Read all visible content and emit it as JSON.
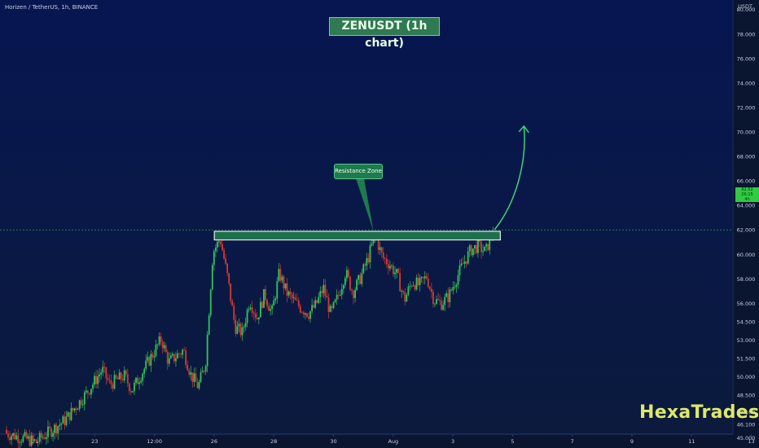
{
  "header": {
    "symbol_info": "Horizen / TetherUS, 1h, BINANCE"
  },
  "title": "ZENUSDT (1h chart)",
  "annotation": {
    "label": "Resistance Zone"
  },
  "brand": "HexaTrades",
  "price_tag": {
    "line1": "62.02",
    "line2": "26:15",
    "line3": "4h"
  },
  "colors": {
    "background_top": "#071651",
    "background_bottom": "#0b1a3c",
    "up_candle": "#33c45a",
    "down_candle": "#d63a2f",
    "resistance_fill": "#1f6e4c",
    "resistance_border": "#e6efe6",
    "projection_arrow": "#3fd27a",
    "current_price_line": "#2ecc40",
    "axis_text": "#c8d0e0"
  },
  "chart_data": {
    "type": "candlestick",
    "title": "ZENUSDT (1h chart)",
    "y_axis": {
      "label": "USDT",
      "ticks": [
        "80.000",
        "78.000",
        "76.000",
        "74.000",
        "72.000",
        "70.000",
        "68.000",
        "66.000",
        "64.000",
        "62.000",
        "60.000",
        "58.000",
        "56.000",
        "54.500",
        "53.000",
        "51.500",
        "50.000",
        "48.500",
        "47.100",
        "46.100",
        "45.000"
      ],
      "ylim": [
        44.2,
        80.8
      ]
    },
    "x_axis": {
      "ticks": [
        "21",
        "23",
        "12:00",
        "26",
        "28",
        "30",
        "Aug",
        "3",
        "5",
        "7",
        "9",
        "11",
        "13"
      ]
    },
    "close_path": [
      [
        0,
        45.4
      ],
      [
        4,
        44.7
      ],
      [
        8,
        46.5
      ],
      [
        11,
        48.8
      ],
      [
        13,
        50.6
      ],
      [
        14,
        49.4
      ],
      [
        16,
        50.1
      ],
      [
        17,
        48.9
      ],
      [
        19,
        51.0
      ],
      [
        21,
        53.1
      ],
      [
        22,
        51.2
      ],
      [
        24,
        52.2
      ],
      [
        25,
        50.2
      ],
      [
        26,
        49.2
      ],
      [
        27,
        51.1
      ],
      [
        28,
        60.2
      ],
      [
        29,
        61.3
      ],
      [
        30,
        58.1
      ],
      [
        31,
        54.1
      ],
      [
        32,
        53.6
      ],
      [
        33,
        56.3
      ],
      [
        34,
        54.8
      ],
      [
        35,
        56.8
      ],
      [
        36,
        55.2
      ],
      [
        37,
        58.5
      ],
      [
        38,
        56.9
      ],
      [
        39,
        56.2
      ],
      [
        40,
        55.6
      ],
      [
        41,
        55.2
      ],
      [
        42,
        55.9
      ],
      [
        43,
        57.3
      ],
      [
        44,
        55.1
      ],
      [
        45,
        56.6
      ],
      [
        46,
        58.6
      ],
      [
        47,
        56.9
      ],
      [
        48,
        58.1
      ],
      [
        49,
        59.6
      ],
      [
        50,
        61.6
      ],
      [
        51,
        59.8
      ],
      [
        52,
        59.2
      ],
      [
        53,
        58.3
      ],
      [
        54,
        56.3
      ],
      [
        55,
        57.8
      ],
      [
        56,
        57.5
      ],
      [
        57,
        58.2
      ],
      [
        58,
        56.3
      ],
      [
        59,
        56.0
      ],
      [
        60,
        56.6
      ],
      [
        61,
        58.0
      ],
      [
        62,
        59.3
      ],
      [
        63,
        60.4
      ],
      [
        64,
        60.7
      ],
      [
        65,
        60.2
      ],
      [
        66,
        62.1
      ]
    ],
    "resistance_zone": {
      "x_start": 28.2,
      "x_end": 67,
      "y_low": 61.2,
      "y_high": 61.9
    },
    "current_price": 62.02,
    "projection_target": 70.5,
    "grid": false
  }
}
